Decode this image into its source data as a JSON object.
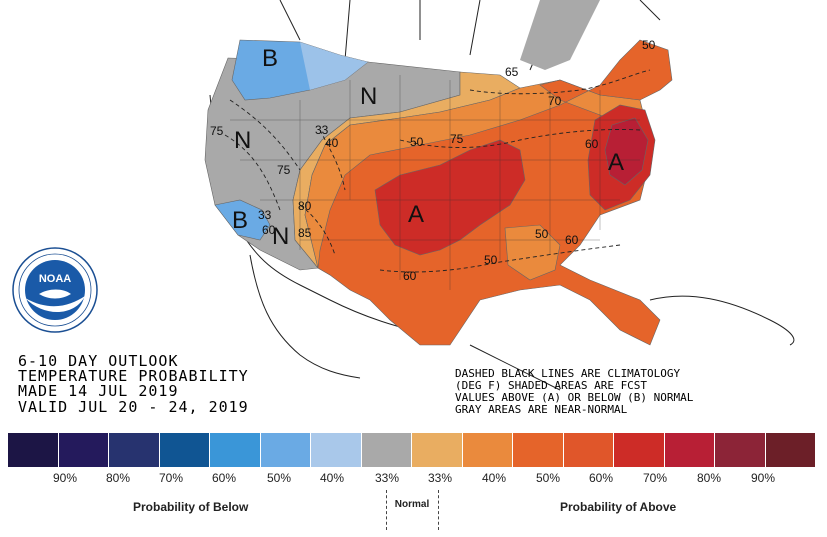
{
  "map": {
    "region_letters": {
      "below_nw": "B",
      "normal_north": "N",
      "normal_west": "N",
      "below_sw": "B",
      "normal_sw": "N",
      "above_central": "A",
      "above_east": "A"
    },
    "contour_labels": {
      "c50_ne": "50",
      "c65": "65",
      "c70": "70",
      "c33": "33",
      "c40": "40",
      "c75_nw": "75",
      "c75_west": "75",
      "c50_central": "50",
      "c75_central": "75",
      "c60_east": "60",
      "c80": "80",
      "c85": "85",
      "c33_sw": "33",
      "c60_sw": "60",
      "c60_south": "60",
      "c50_south1": "50",
      "c60_southeast": "60",
      "c50_gulf": "50"
    }
  },
  "logo": {
    "text": "NOAA"
  },
  "title_block": {
    "line1": "6-10 DAY OUTLOOK",
    "line2": "TEMPERATURE PROBABILITY",
    "line3": "MADE  14 JUL 2019",
    "line4": "VALID  JUL 20 - 24, 2019"
  },
  "notes": {
    "line1": "DASHED BLACK LINES ARE CLIMATOLOGY",
    "line2": "(DEG F) SHADED AREAS ARE FCST",
    "line3": "VALUES ABOVE (A) OR BELOW (B) NORMAL",
    "line4": "GRAY AREAS ARE NEAR-NORMAL"
  },
  "legend": {
    "colors": [
      "#1c1545",
      "#241a5c",
      "#27336f",
      "#105593",
      "#3a96d8",
      "#6aaae4",
      "#a9c8ea",
      "#a9a9a9",
      "#e9ad61",
      "#ea8a3d",
      "#e5642a",
      "#e0562a",
      "#cd2c27",
      "#b81f35",
      "#8c2437",
      "#6c1f28"
    ],
    "below_ticks": [
      "90%",
      "80%",
      "70%",
      "60%",
      "50%",
      "40%",
      "33%"
    ],
    "above_ticks": [
      "33%",
      "40%",
      "50%",
      "60%",
      "70%",
      "80%",
      "90%"
    ],
    "below_caption": "Probability of Below",
    "normal_caption": "Normal",
    "above_caption": "Probability of Above"
  }
}
